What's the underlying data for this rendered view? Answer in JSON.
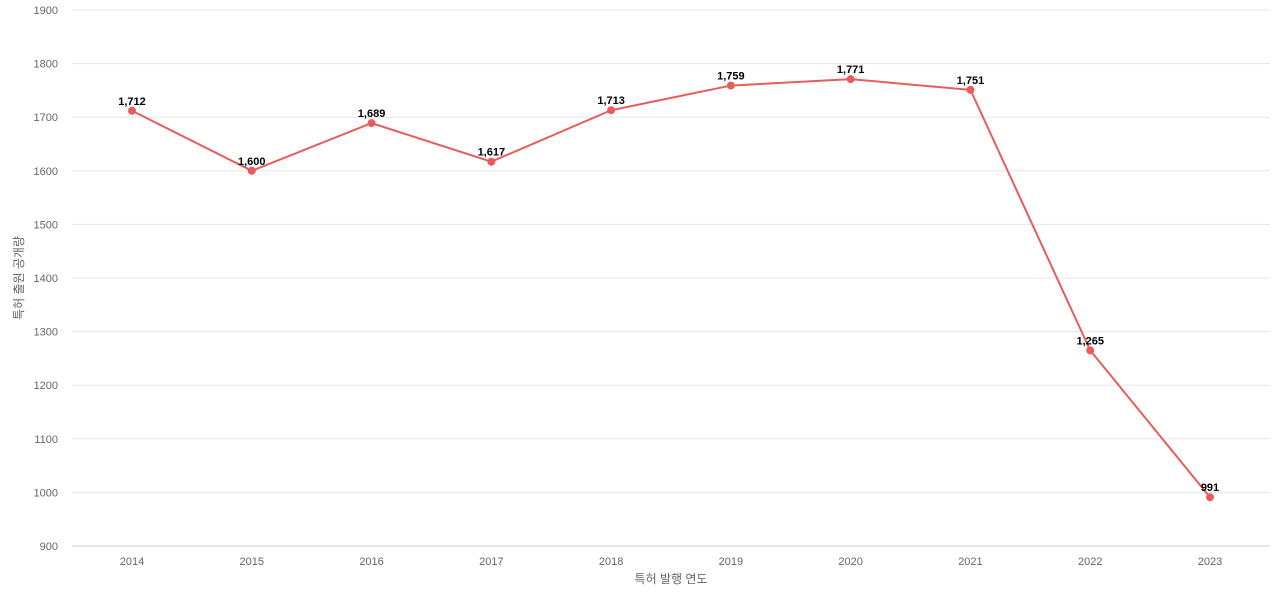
{
  "chart_data": {
    "type": "line",
    "x": [
      "2014",
      "2015",
      "2016",
      "2017",
      "2018",
      "2019",
      "2020",
      "2021",
      "2022",
      "2023"
    ],
    "series": [
      {
        "values": [
          1712,
          1600,
          1689,
          1617,
          1713,
          1759,
          1771,
          1751,
          1265,
          991
        ],
        "labels": [
          "1,712",
          "1,600",
          "1,689",
          "1,617",
          "1,713",
          "1,759",
          "1,771",
          "1,751",
          "1,265",
          "991"
        ],
        "color": "#e85c5c"
      }
    ],
    "xlabel": "특허 발행 연도",
    "ylabel": "특허 출원 공개량",
    "ylim": [
      900,
      1900
    ],
    "yticks": [
      "900",
      "1000",
      "1100",
      "1200",
      "1300",
      "1400",
      "1500",
      "1600",
      "1700",
      "1800",
      "1900"
    ],
    "grid": true,
    "legend": "none"
  }
}
